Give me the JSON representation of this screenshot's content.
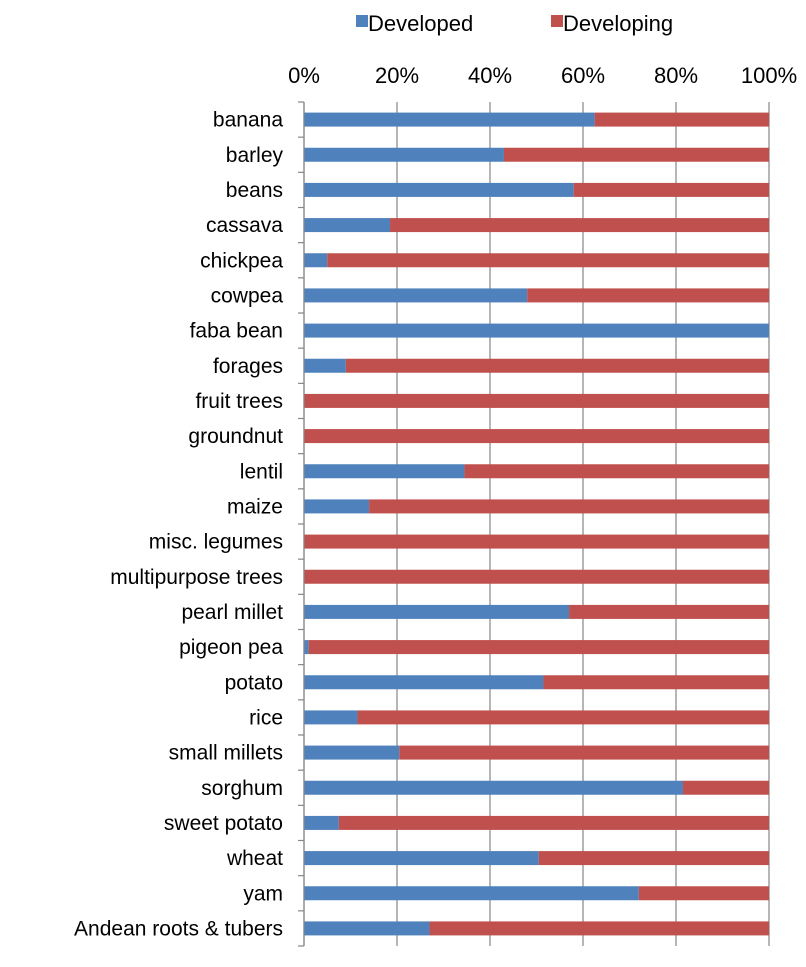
{
  "chart_data": {
    "type": "bar",
    "orientation": "horizontal",
    "stacked": "percent",
    "title": "",
    "xlabel": "",
    "ylabel": "",
    "xlim": [
      0,
      100
    ],
    "xticks": [
      "0%",
      "20%",
      "40%",
      "60%",
      "80%",
      "100%"
    ],
    "grid": true,
    "legend_position": "top",
    "categories": [
      "banana",
      "barley",
      "beans",
      "cassava",
      "chickpea",
      "cowpea",
      "faba bean",
      "forages",
      "fruit trees",
      "groundnut",
      "lentil",
      "maize",
      "misc. legumes",
      "multipurpose trees",
      "pearl millet",
      "pigeon pea",
      "potato",
      "rice",
      "small millets",
      "sorghum",
      "sweet potato",
      "wheat",
      "yam",
      "Andean roots & tubers"
    ],
    "series": [
      {
        "name": "Developed",
        "color": "#4f81bd",
        "values": [
          62.5,
          43,
          58,
          18.5,
          5,
          48,
          100,
          9,
          0,
          0,
          34.5,
          14,
          0,
          0,
          57,
          1,
          51.5,
          11.5,
          20.5,
          81.5,
          7.5,
          50.5,
          72,
          27
        ]
      },
      {
        "name": "Developing",
        "color": "#c0504d",
        "values": [
          37.5,
          57,
          42,
          81.5,
          95,
          52,
          0,
          91,
          100,
          100,
          65.5,
          86,
          100,
          100,
          43,
          99,
          48.5,
          88.5,
          79.5,
          18.5,
          92.5,
          49.5,
          28,
          73
        ]
      }
    ]
  }
}
